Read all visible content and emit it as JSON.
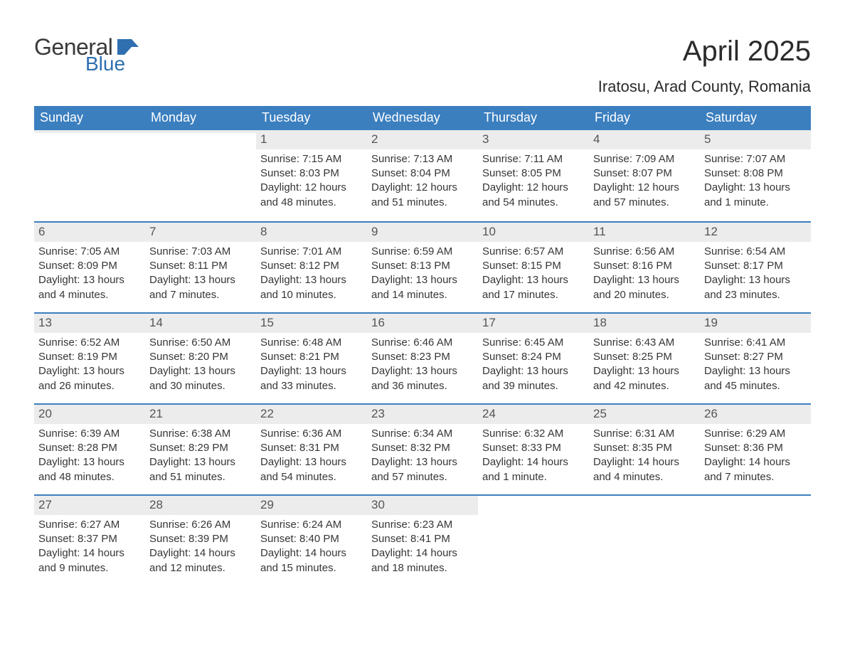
{
  "logo": {
    "general": "General",
    "blue": "Blue",
    "icon_color": "#2f6fb0"
  },
  "title": "April 2025",
  "location": "Iratosu, Arad County, Romania",
  "colors": {
    "header_bg": "#3b7fbf",
    "header_text": "#ffffff",
    "daynum_bg": "#ececec",
    "daynum_text": "#555555",
    "body_text": "#363636",
    "week_border": "#3b7fbf",
    "page_bg": "#ffffff"
  },
  "typography": {
    "title_fontsize": 40,
    "location_fontsize": 22,
    "weekday_fontsize": 18,
    "daynum_fontsize": 17,
    "body_fontsize": 15
  },
  "weekdays": [
    "Sunday",
    "Monday",
    "Tuesday",
    "Wednesday",
    "Thursday",
    "Friday",
    "Saturday"
  ],
  "weeks": [
    [
      {
        "n": "",
        "sr": "",
        "ss": "",
        "dl": ""
      },
      {
        "n": "",
        "sr": "",
        "ss": "",
        "dl": ""
      },
      {
        "n": "1",
        "sr": "Sunrise: 7:15 AM",
        "ss": "Sunset: 8:03 PM",
        "dl": "Daylight: 12 hours and 48 minutes."
      },
      {
        "n": "2",
        "sr": "Sunrise: 7:13 AM",
        "ss": "Sunset: 8:04 PM",
        "dl": "Daylight: 12 hours and 51 minutes."
      },
      {
        "n": "3",
        "sr": "Sunrise: 7:11 AM",
        "ss": "Sunset: 8:05 PM",
        "dl": "Daylight: 12 hours and 54 minutes."
      },
      {
        "n": "4",
        "sr": "Sunrise: 7:09 AM",
        "ss": "Sunset: 8:07 PM",
        "dl": "Daylight: 12 hours and 57 minutes."
      },
      {
        "n": "5",
        "sr": "Sunrise: 7:07 AM",
        "ss": "Sunset: 8:08 PM",
        "dl": "Daylight: 13 hours and 1 minute."
      }
    ],
    [
      {
        "n": "6",
        "sr": "Sunrise: 7:05 AM",
        "ss": "Sunset: 8:09 PM",
        "dl": "Daylight: 13 hours and 4 minutes."
      },
      {
        "n": "7",
        "sr": "Sunrise: 7:03 AM",
        "ss": "Sunset: 8:11 PM",
        "dl": "Daylight: 13 hours and 7 minutes."
      },
      {
        "n": "8",
        "sr": "Sunrise: 7:01 AM",
        "ss": "Sunset: 8:12 PM",
        "dl": "Daylight: 13 hours and 10 minutes."
      },
      {
        "n": "9",
        "sr": "Sunrise: 6:59 AM",
        "ss": "Sunset: 8:13 PM",
        "dl": "Daylight: 13 hours and 14 minutes."
      },
      {
        "n": "10",
        "sr": "Sunrise: 6:57 AM",
        "ss": "Sunset: 8:15 PM",
        "dl": "Daylight: 13 hours and 17 minutes."
      },
      {
        "n": "11",
        "sr": "Sunrise: 6:56 AM",
        "ss": "Sunset: 8:16 PM",
        "dl": "Daylight: 13 hours and 20 minutes."
      },
      {
        "n": "12",
        "sr": "Sunrise: 6:54 AM",
        "ss": "Sunset: 8:17 PM",
        "dl": "Daylight: 13 hours and 23 minutes."
      }
    ],
    [
      {
        "n": "13",
        "sr": "Sunrise: 6:52 AM",
        "ss": "Sunset: 8:19 PM",
        "dl": "Daylight: 13 hours and 26 minutes."
      },
      {
        "n": "14",
        "sr": "Sunrise: 6:50 AM",
        "ss": "Sunset: 8:20 PM",
        "dl": "Daylight: 13 hours and 30 minutes."
      },
      {
        "n": "15",
        "sr": "Sunrise: 6:48 AM",
        "ss": "Sunset: 8:21 PM",
        "dl": "Daylight: 13 hours and 33 minutes."
      },
      {
        "n": "16",
        "sr": "Sunrise: 6:46 AM",
        "ss": "Sunset: 8:23 PM",
        "dl": "Daylight: 13 hours and 36 minutes."
      },
      {
        "n": "17",
        "sr": "Sunrise: 6:45 AM",
        "ss": "Sunset: 8:24 PM",
        "dl": "Daylight: 13 hours and 39 minutes."
      },
      {
        "n": "18",
        "sr": "Sunrise: 6:43 AM",
        "ss": "Sunset: 8:25 PM",
        "dl": "Daylight: 13 hours and 42 minutes."
      },
      {
        "n": "19",
        "sr": "Sunrise: 6:41 AM",
        "ss": "Sunset: 8:27 PM",
        "dl": "Daylight: 13 hours and 45 minutes."
      }
    ],
    [
      {
        "n": "20",
        "sr": "Sunrise: 6:39 AM",
        "ss": "Sunset: 8:28 PM",
        "dl": "Daylight: 13 hours and 48 minutes."
      },
      {
        "n": "21",
        "sr": "Sunrise: 6:38 AM",
        "ss": "Sunset: 8:29 PM",
        "dl": "Daylight: 13 hours and 51 minutes."
      },
      {
        "n": "22",
        "sr": "Sunrise: 6:36 AM",
        "ss": "Sunset: 8:31 PM",
        "dl": "Daylight: 13 hours and 54 minutes."
      },
      {
        "n": "23",
        "sr": "Sunrise: 6:34 AM",
        "ss": "Sunset: 8:32 PM",
        "dl": "Daylight: 13 hours and 57 minutes."
      },
      {
        "n": "24",
        "sr": "Sunrise: 6:32 AM",
        "ss": "Sunset: 8:33 PM",
        "dl": "Daylight: 14 hours and 1 minute."
      },
      {
        "n": "25",
        "sr": "Sunrise: 6:31 AM",
        "ss": "Sunset: 8:35 PM",
        "dl": "Daylight: 14 hours and 4 minutes."
      },
      {
        "n": "26",
        "sr": "Sunrise: 6:29 AM",
        "ss": "Sunset: 8:36 PM",
        "dl": "Daylight: 14 hours and 7 minutes."
      }
    ],
    [
      {
        "n": "27",
        "sr": "Sunrise: 6:27 AM",
        "ss": "Sunset: 8:37 PM",
        "dl": "Daylight: 14 hours and 9 minutes."
      },
      {
        "n": "28",
        "sr": "Sunrise: 6:26 AM",
        "ss": "Sunset: 8:39 PM",
        "dl": "Daylight: 14 hours and 12 minutes."
      },
      {
        "n": "29",
        "sr": "Sunrise: 6:24 AM",
        "ss": "Sunset: 8:40 PM",
        "dl": "Daylight: 14 hours and 15 minutes."
      },
      {
        "n": "30",
        "sr": "Sunrise: 6:23 AM",
        "ss": "Sunset: 8:41 PM",
        "dl": "Daylight: 14 hours and 18 minutes."
      },
      {
        "n": "",
        "sr": "",
        "ss": "",
        "dl": ""
      },
      {
        "n": "",
        "sr": "",
        "ss": "",
        "dl": ""
      },
      {
        "n": "",
        "sr": "",
        "ss": "",
        "dl": ""
      }
    ]
  ]
}
